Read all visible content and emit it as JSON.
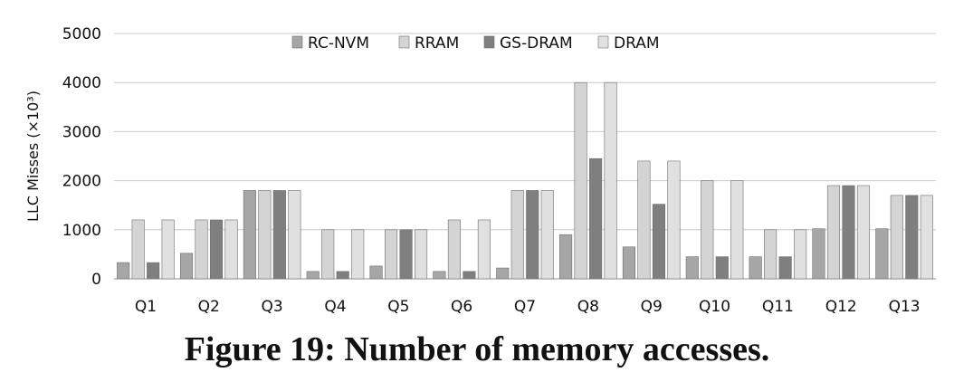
{
  "chart_data": {
    "type": "bar",
    "title": "",
    "xlabel": "",
    "ylabel": "LLC Misses (×10³)",
    "ylim": [
      0,
      5000
    ],
    "yticks": [
      "0",
      "1000",
      "2000",
      "3000",
      "4000",
      "5000"
    ],
    "yticks_values": [
      0,
      1000,
      2000,
      3000,
      4000,
      5000
    ],
    "grid": true,
    "legend_position": "top-center",
    "categories": [
      "Q1",
      "Q2",
      "Q3",
      "Q4",
      "Q5",
      "Q6",
      "Q7",
      "Q8",
      "Q9",
      "Q10",
      "Q11",
      "Q12",
      "Q13"
    ],
    "series": [
      {
        "name": "RC-NVM",
        "color": "#a6a6a6",
        "values": [
          330,
          520,
          1800,
          150,
          260,
          150,
          220,
          900,
          650,
          450,
          450,
          1020,
          1020
        ]
      },
      {
        "name": "RRAM",
        "color": "#d4d4d4",
        "values": [
          1200,
          1200,
          1800,
          1000,
          1000,
          1200,
          1800,
          4000,
          2400,
          2000,
          1000,
          1900,
          1700
        ]
      },
      {
        "name": "GS-DRAM",
        "color": "#7f7f7f",
        "values": [
          330,
          1200,
          1800,
          150,
          1000,
          150,
          1800,
          2450,
          1520,
          450,
          450,
          1900,
          1700
        ]
      },
      {
        "name": "DRAM",
        "color": "#e0e0e0",
        "values": [
          1200,
          1200,
          1800,
          1000,
          1000,
          1200,
          1800,
          4000,
          2400,
          2000,
          1000,
          1900,
          1700
        ]
      }
    ]
  },
  "caption": "Figure 19: Number of memory accesses."
}
